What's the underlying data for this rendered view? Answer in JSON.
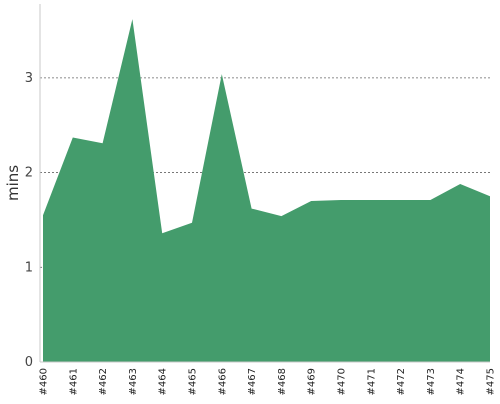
{
  "chart_data": {
    "type": "area",
    "title": "",
    "xlabel": "",
    "ylabel": "mins",
    "ylim": [
      0,
      3.78
    ],
    "yticks": [
      0,
      1,
      2,
      3
    ],
    "grid": true,
    "legend": "none",
    "colors": {
      "fill": "#449c6c",
      "grid": "#666666",
      "axis": "#c8c8c8"
    },
    "categories": [
      "#460",
      "#461",
      "#462",
      "#463",
      "#464",
      "#465",
      "#466",
      "#467",
      "#468",
      "#469",
      "#470",
      "#471",
      "#472",
      "#473",
      "#474",
      "#475"
    ],
    "series": [
      {
        "values": [
          1.55,
          2.37,
          2.31,
          3.62,
          1.36,
          1.47,
          3.04,
          1.62,
          1.54,
          1.7,
          1.71,
          1.71,
          1.71,
          1.71,
          1.88,
          1.75
        ]
      }
    ]
  }
}
